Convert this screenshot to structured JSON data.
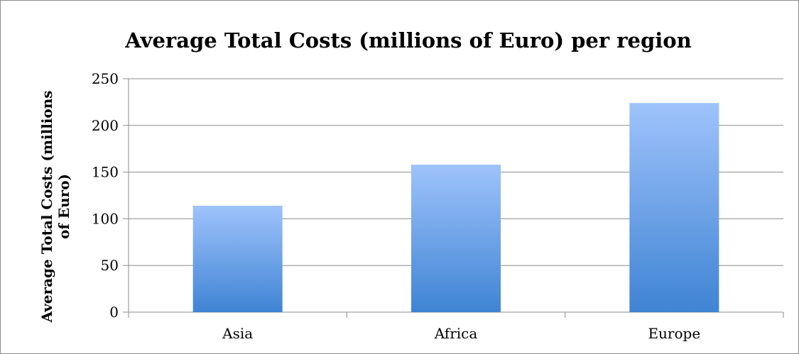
{
  "chart_data": {
    "type": "bar",
    "title": "Average Total Costs (millions of Euro) per region",
    "ylabel_lines": [
      "Average Total Costs (millions",
      "of Euro)"
    ],
    "xlabel": "",
    "categories": [
      "Asia",
      "Africa",
      "Europe"
    ],
    "values": [
      114,
      158,
      224
    ],
    "ylim": [
      0,
      250
    ],
    "yticks": [
      0,
      50,
      100,
      150,
      200,
      250
    ],
    "grid": true,
    "legend": "none",
    "bar_color_top": "#9fc3fb",
    "bar_color_bottom": "#3f84d4"
  }
}
